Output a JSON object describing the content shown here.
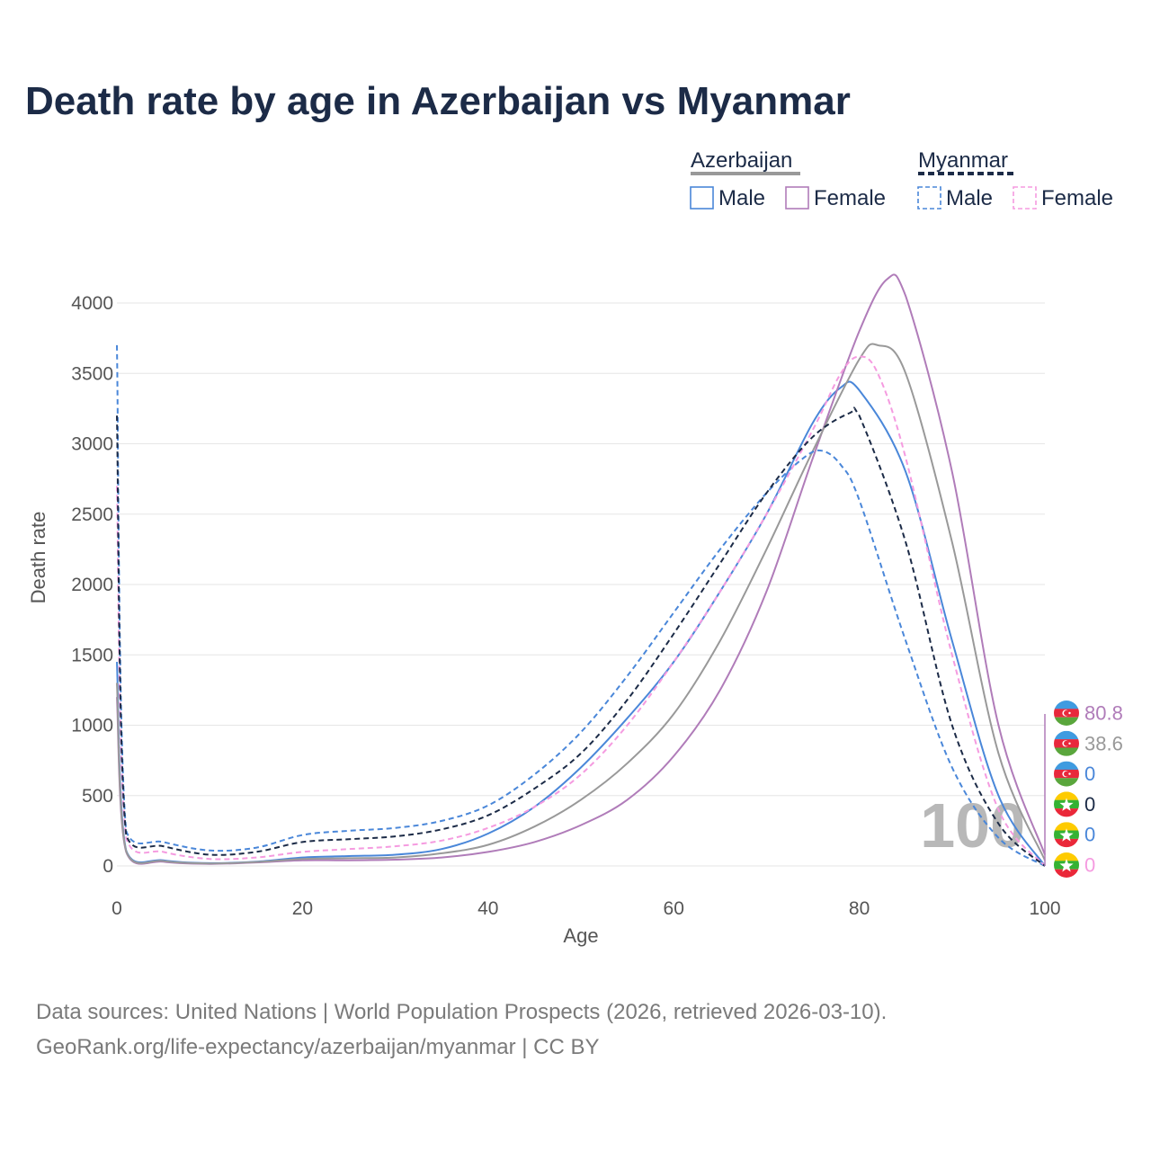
{
  "title": "Death rate by age in Azerbaijan vs Myanmar",
  "footer": {
    "line1": "Data sources: United Nations | World Population Prospects (2026, retrieved 2026-03-10).",
    "line2": "GeoRank.org/life-expectancy/azerbaijan/myanmar | CC BY"
  },
  "legend": {
    "groups": [
      {
        "name": "Azerbaijan",
        "line_color": "#999999",
        "dash": "solid",
        "items": [
          {
            "label": "Male",
            "color": "#4a87d9",
            "dash": "solid"
          },
          {
            "label": "Female",
            "color": "#b07cb9",
            "dash": "solid"
          }
        ]
      },
      {
        "name": "Myanmar",
        "line_color": "#1c2b47",
        "dash": "dashed",
        "items": [
          {
            "label": "Male",
            "color": "#4a87d9",
            "dash": "dashed"
          },
          {
            "label": "Female",
            "color": "#f59be0",
            "dash": "dashed"
          }
        ]
      }
    ]
  },
  "year_label": "100",
  "end_labels": [
    {
      "text": "80.8",
      "color": "#b07cb9",
      "flag": "azerbaijan-flag-icon"
    },
    {
      "text": "38.6",
      "color": "#999999",
      "flag": "azerbaijan-flag-icon"
    },
    {
      "text": "0",
      "color": "#4a87d9",
      "flag": "azerbaijan-flag-icon"
    },
    {
      "text": "0",
      "color": "#1c2b47",
      "flag": "myanmar-flag-icon"
    },
    {
      "text": "0",
      "color": "#4a87d9",
      "flag": "myanmar-flag-icon"
    },
    {
      "text": "0",
      "color": "#f59be0",
      "flag": "myanmar-flag-icon"
    }
  ],
  "chart_data": {
    "type": "line",
    "title": "Death rate by age in Azerbaijan vs Myanmar",
    "xlabel": "Age",
    "ylabel": "Death rate",
    "xlim": [
      0,
      100
    ],
    "ylim": [
      0,
      4000
    ],
    "xticks": [
      0,
      20,
      40,
      60,
      80,
      100
    ],
    "yticks": [
      0,
      500,
      1000,
      1500,
      2000,
      2500,
      3000,
      3500,
      4000
    ],
    "grid": true,
    "legend_position": "top-right",
    "series": [
      {
        "name": "Azerbaijan Male",
        "country": "Azerbaijan",
        "sex": "Male",
        "color": "#4a87d9",
        "dash": "solid",
        "x": [
          0,
          1,
          5,
          10,
          15,
          20,
          25,
          30,
          35,
          40,
          45,
          50,
          55,
          60,
          65,
          70,
          75,
          78,
          80,
          85,
          90,
          95,
          100
        ],
        "y": [
          1450,
          110,
          40,
          20,
          30,
          60,
          70,
          80,
          120,
          230,
          420,
          700,
          1050,
          1450,
          1950,
          2500,
          3150,
          3400,
          3380,
          2800,
          1600,
          500,
          0
        ]
      },
      {
        "name": "Azerbaijan Female",
        "country": "Azerbaijan",
        "sex": "Female",
        "color": "#b07cb9",
        "dash": "solid",
        "x": [
          0,
          1,
          5,
          10,
          15,
          20,
          25,
          30,
          35,
          40,
          45,
          50,
          55,
          60,
          65,
          70,
          75,
          80,
          83,
          85,
          90,
          95,
          100
        ],
        "y": [
          1200,
          100,
          30,
          15,
          25,
          40,
          40,
          45,
          60,
          100,
          170,
          290,
          470,
          780,
          1250,
          1950,
          2900,
          3800,
          4170,
          4050,
          2800,
          1000,
          80
        ]
      },
      {
        "name": "Azerbaijan Total",
        "country": "Azerbaijan",
        "sex": "Total",
        "color": "#999999",
        "dash": "solid",
        "x": [
          0,
          1,
          5,
          10,
          15,
          20,
          25,
          30,
          35,
          40,
          45,
          50,
          55,
          60,
          65,
          70,
          75,
          80,
          82,
          85,
          90,
          95,
          100
        ],
        "y": [
          1300,
          105,
          35,
          18,
          28,
          50,
          55,
          60,
          90,
          150,
          280,
          470,
          730,
          1080,
          1600,
          2250,
          2950,
          3600,
          3700,
          3500,
          2300,
          800,
          40
        ]
      },
      {
        "name": "Myanmar Male",
        "country": "Myanmar",
        "sex": "Male",
        "color": "#4a87d9",
        "dash": "dashed",
        "x": [
          0,
          1,
          5,
          10,
          15,
          20,
          25,
          30,
          35,
          40,
          45,
          50,
          55,
          60,
          65,
          70,
          74,
          76,
          78,
          80,
          85,
          90,
          95,
          100
        ],
        "y": [
          3700,
          250,
          170,
          110,
          130,
          220,
          250,
          270,
          320,
          430,
          650,
          950,
          1350,
          1800,
          2250,
          2650,
          2900,
          2950,
          2850,
          2600,
          1600,
          700,
          200,
          0
        ]
      },
      {
        "name": "Myanmar Female",
        "country": "Myanmar",
        "sex": "Female",
        "color": "#f59be0",
        "dash": "dashed",
        "x": [
          0,
          1,
          5,
          10,
          15,
          20,
          25,
          30,
          35,
          40,
          45,
          50,
          55,
          60,
          65,
          70,
          75,
          78,
          80,
          82,
          85,
          90,
          95,
          100
        ],
        "y": [
          2700,
          200,
          100,
          50,
          60,
          100,
          120,
          140,
          180,
          270,
          420,
          650,
          1000,
          1450,
          1950,
          2500,
          3100,
          3500,
          3620,
          3500,
          2900,
          1500,
          400,
          0
        ]
      },
      {
        "name": "Myanmar Total",
        "country": "Myanmar",
        "sex": "Total",
        "color": "#1c2b47",
        "dash": "dashed",
        "x": [
          0,
          1,
          5,
          10,
          15,
          20,
          25,
          30,
          35,
          40,
          45,
          50,
          55,
          60,
          65,
          70,
          75,
          79,
          80,
          85,
          90,
          95,
          100
        ],
        "y": [
          3200,
          220,
          140,
          80,
          100,
          170,
          190,
          210,
          260,
          360,
          550,
          800,
          1180,
          1650,
          2150,
          2650,
          3050,
          3220,
          3200,
          2300,
          1000,
          300,
          0
        ]
      }
    ]
  }
}
